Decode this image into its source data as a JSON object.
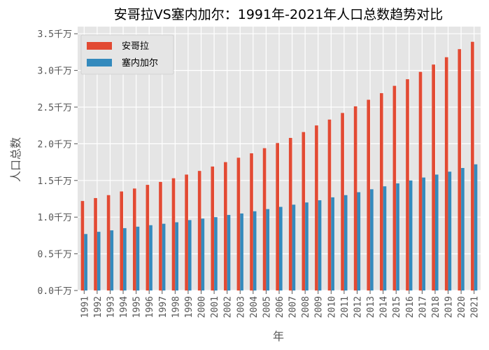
{
  "chart_data": {
    "type": "bar",
    "title": "安哥拉VS塞内加尔：1991年-2021年人口总数趋势对比",
    "xlabel": "年",
    "ylabel": "人口总数",
    "ylim": [
      0,
      3.55
    ],
    "grid": true,
    "legend_position": "top-left",
    "yticks": [
      0,
      0.5,
      1.0,
      1.5,
      2.0,
      2.5,
      3.0,
      3.5
    ],
    "ytick_labels": [
      "0.0千万",
      "0.5千万",
      "1.0千万",
      "1.5千万",
      "2.0千万",
      "2.5千万",
      "3.0千万",
      "3.5千万"
    ],
    "categories": [
      "1991",
      "1992",
      "1993",
      "1994",
      "1995",
      "1996",
      "1997",
      "1998",
      "1999",
      "2000",
      "2001",
      "2002",
      "2003",
      "2004",
      "2005",
      "2006",
      "2007",
      "2008",
      "2009",
      "2010",
      "2011",
      "2012",
      "2013",
      "2014",
      "2015",
      "2016",
      "2017",
      "2018",
      "2019",
      "2020",
      "2021"
    ],
    "series": [
      {
        "name": "安哥拉",
        "color": "#E24A33",
        "values": [
          1.22,
          1.26,
          1.3,
          1.35,
          1.39,
          1.44,
          1.48,
          1.53,
          1.58,
          1.63,
          1.69,
          1.75,
          1.81,
          1.87,
          1.94,
          2.01,
          2.08,
          2.16,
          2.25,
          2.33,
          2.42,
          2.51,
          2.6,
          2.69,
          2.79,
          2.88,
          2.98,
          3.08,
          3.18,
          3.29,
          3.39
        ]
      },
      {
        "name": "塞内加尔",
        "color": "#348ABD",
        "values": [
          0.77,
          0.8,
          0.82,
          0.85,
          0.87,
          0.89,
          0.91,
          0.93,
          0.96,
          0.98,
          1.0,
          1.03,
          1.05,
          1.08,
          1.11,
          1.14,
          1.17,
          1.2,
          1.23,
          1.27,
          1.3,
          1.34,
          1.38,
          1.42,
          1.46,
          1.5,
          1.54,
          1.58,
          1.62,
          1.67,
          1.72
        ]
      }
    ]
  }
}
